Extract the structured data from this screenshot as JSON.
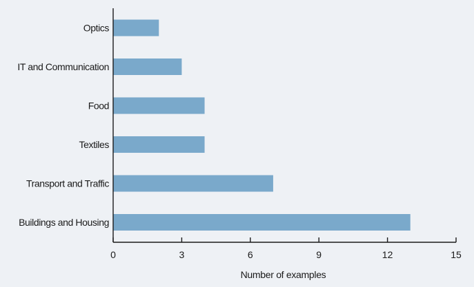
{
  "colors": {
    "background": "#eef1f5",
    "bar": "#7aa9cb",
    "axis": "#1a1a1a"
  },
  "chart_data": {
    "type": "bar",
    "orientation": "horizontal",
    "categories": [
      "Optics",
      "IT and Communication",
      "Food",
      "Textiles",
      "Transport and Traffic",
      "Buildings and Housing"
    ],
    "values": [
      2,
      3,
      4,
      4,
      7,
      13
    ],
    "title": "",
    "xlabel": "Number of examples",
    "ylabel": "",
    "xlim": [
      0,
      15
    ],
    "xticks": [
      0,
      3,
      6,
      9,
      12,
      15
    ],
    "grid": false,
    "legend": "none"
  }
}
